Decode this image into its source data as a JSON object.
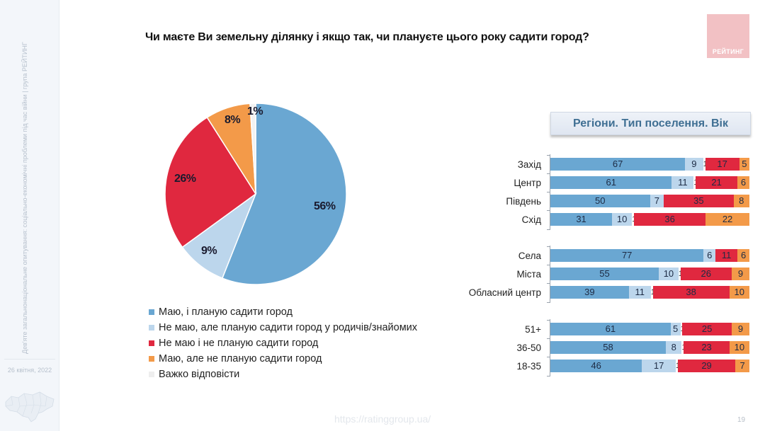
{
  "sidebar": {
    "vertical_text": "Дев'яте загальнонаціональне опитування: соціально-економічні проблеми під час війни | група РЕЙТИНГ",
    "date": "26 квітня, 2022",
    "map_icon": "ukraine-map-icon"
  },
  "header": {
    "title": "Чи маєте Ви земельну ділянку і якщо так, чи плануєте цього року садити город?",
    "logo_text": "РЕЙТИНГ"
  },
  "colors": {
    "have_plan": "#6aa7d2",
    "nothave_plan_relatives": "#bcd6ec",
    "nothave_noplan": "#e0283f",
    "have_noplan": "#f39a49",
    "hard_to_say": "#f2f2f2",
    "logo": "#f2c1c4",
    "panel_title": "#3f6f93"
  },
  "legend": [
    {
      "label": "Маю, і планую садити город",
      "color": "#6aa7d2"
    },
    {
      "label": "Не маю, але планую садити город у родичів/знайомих",
      "color": "#bcd6ec"
    },
    {
      "label": "Не маю і не планую садити город",
      "color": "#e0283f"
    },
    {
      "label": "Маю, але не планую садити город",
      "color": "#f39a49"
    },
    {
      "label": "Важко відповісти",
      "color": "#f2f2f2"
    }
  ],
  "pie_labels": {
    "have_plan": "56%",
    "nothave_plan_relatives": "9%",
    "nothave_noplan": "26%",
    "have_noplan": "8%",
    "hard_to_say": "1%"
  },
  "panel": {
    "title": "Регіони. Тип поселення. Вік"
  },
  "footer": {
    "url": "https://ratinggroup.ua/",
    "page": "19"
  },
  "chart_data": [
    {
      "type": "pie",
      "title": "Чи маєте Ви земельну ділянку і якщо так, чи плануєте цього року садити город?",
      "categories": [
        "Маю, і планую садити город",
        "Не маю, але планую садити город у родичів/знайомих",
        "Не маю і не планую садити город",
        "Маю, але не планую садити город",
        "Важко відповісти"
      ],
      "values": [
        56,
        9,
        26,
        8,
        1
      ],
      "unit": "%",
      "legend_position": "bottom"
    },
    {
      "type": "bar",
      "orientation": "horizontal",
      "stacked": true,
      "title": "Регіони. Тип поселення. Вік",
      "groups": [
        "Регіони",
        "Тип поселення",
        "Вік"
      ],
      "categories": [
        "Захід",
        "Центр",
        "Південь",
        "Схід",
        "Села",
        "Міста",
        "Обласний центр",
        "51+",
        "36-50",
        "18-35"
      ],
      "series": [
        {
          "name": "Маю, і планую садити город",
          "values": [
            67,
            61,
            50,
            31,
            77,
            55,
            39,
            61,
            58,
            46
          ]
        },
        {
          "name": "Не маю, але планую садити город у родичів/знайомих",
          "values": [
            9,
            11,
            7,
            10,
            6,
            10,
            11,
            5,
            8,
            17
          ]
        },
        {
          "name": "Важко відповісти",
          "values": [
            1,
            1,
            0,
            1,
            0,
            1,
            1,
            1,
            1,
            1
          ]
        },
        {
          "name": "Не маю і не планую садити город",
          "values": [
            17,
            21,
            35,
            36,
            11,
            26,
            38,
            25,
            23,
            29
          ]
        },
        {
          "name": "Маю, але не планую садити город",
          "values": [
            5,
            6,
            8,
            22,
            6,
            9,
            10,
            9,
            10,
            7
          ]
        }
      ],
      "xlim": [
        0,
        100
      ],
      "grid": false
    }
  ],
  "bar_rows": [
    {
      "label": "Захід",
      "segs": [
        "67",
        "9",
        "1",
        "17",
        "5"
      ]
    },
    {
      "label": "Центр",
      "segs": [
        "61",
        "11",
        "1",
        "21",
        "6"
      ]
    },
    {
      "label": "Південь",
      "segs": [
        "50",
        "7",
        "",
        "35",
        "8"
      ]
    },
    {
      "label": "Схід",
      "segs": [
        "31",
        "10",
        "1",
        "36",
        "22"
      ]
    },
    {
      "label": "Села",
      "segs": [
        "77",
        "6",
        "",
        "11",
        "6"
      ]
    },
    {
      "label": "Міста",
      "segs": [
        "55",
        "10",
        "1",
        "26",
        "9"
      ]
    },
    {
      "label": "Обласний центр",
      "segs": [
        "39",
        "11",
        "1",
        "38",
        "10"
      ]
    },
    {
      "label": "51+",
      "segs": [
        "61",
        "5",
        "1",
        "25",
        "9"
      ]
    },
    {
      "label": "36-50",
      "segs": [
        "58",
        "8",
        "1",
        "23",
        "10"
      ]
    },
    {
      "label": "18-35",
      "segs": [
        "46",
        "17",
        "1",
        "29",
        "7"
      ]
    }
  ]
}
